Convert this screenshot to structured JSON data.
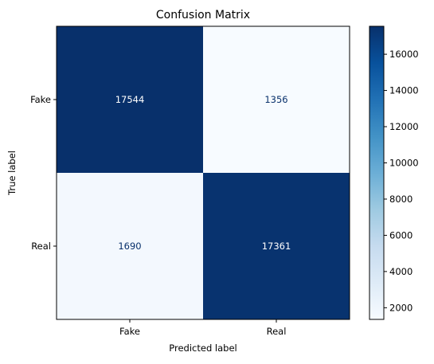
{
  "chart_data": {
    "type": "heatmap",
    "title": "Confusion Matrix",
    "xlabel": "Predicted label",
    "ylabel": "True label",
    "x_categories": [
      "Fake",
      "Real"
    ],
    "y_categories": [
      "Fake",
      "Real"
    ],
    "values": [
      [
        17544,
        1356
      ],
      [
        1690,
        17361
      ]
    ],
    "colormap": "Blues",
    "color_range": [
      1356,
      17544
    ],
    "colorbar_ticks": [
      2000,
      4000,
      6000,
      8000,
      10000,
      12000,
      14000,
      16000
    ],
    "text_color_dark_cell": "#ffffff",
    "text_color_light_cell": "#08306b",
    "grid": false
  }
}
